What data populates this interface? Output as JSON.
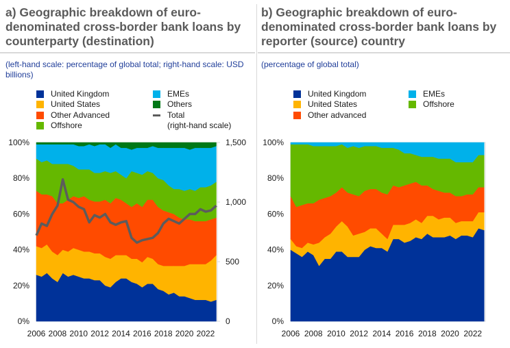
{
  "colors": {
    "united_kingdom": "#003299",
    "united_states": "#ffb400",
    "other_advanced": "#ff4b00",
    "offshore": "#65b800",
    "emes": "#00b1ea",
    "others": "#007816",
    "total": "#5c5c5c",
    "title": "#5a5a5a",
    "subtitle": "#1f3d99"
  },
  "panel_a": {
    "title": "a) Geographic breakdown of euro-denominated cross-border bank loans by counterparty (destination)",
    "subtitle": "(left-hand scale: percentage of global total; right-hand scale: USD billions)",
    "legend": [
      {
        "key": "united_kingdom",
        "label": "United Kingdom"
      },
      {
        "key": "united_states",
        "label": "United States"
      },
      {
        "key": "other_advanced",
        "label": "Other Advanced"
      },
      {
        "key": "offshore",
        "label": "Offshore"
      },
      {
        "key": "emes",
        "label": "EMEs"
      },
      {
        "key": "others",
        "label": "Others"
      },
      {
        "key": "total",
        "label": "Total",
        "label2": "(right-hand scale)"
      }
    ]
  },
  "panel_b": {
    "title": "b) Geographic breakdown of euro-denominated cross-border bank loans by reporter (source) country",
    "subtitle": "(percentage of global total)",
    "legend": [
      {
        "key": "united_kingdom",
        "label": "United Kingdom"
      },
      {
        "key": "united_states",
        "label": "United States"
      },
      {
        "key": "other_advanced",
        "label": "Other advanced"
      },
      {
        "key": "emes",
        "label": "EMEs"
      },
      {
        "key": "offshore",
        "label": "Offshore"
      }
    ]
  },
  "chart_data": [
    {
      "type": "area",
      "stacked": true,
      "title": "a) Geographic breakdown of euro-denominated cross-border bank loans by counterparty (destination)",
      "xlabel": "",
      "ylabel": "percentage of global total",
      "y2label": "USD billions",
      "xlim": [
        2006,
        2023.1
      ],
      "ylim": [
        0,
        100
      ],
      "y2lim": [
        0,
        1500
      ],
      "x_ticks": [
        "2006",
        "2008",
        "2010",
        "2012",
        "2014",
        "2016",
        "2018",
        "2020",
        "2022"
      ],
      "y_ticks": [
        "0%",
        "20%",
        "40%",
        "60%",
        "80%",
        "100%"
      ],
      "y2_ticks": [
        "0",
        "500",
        "1,000",
        "1,500"
      ],
      "x": [
        2006.0,
        2006.5,
        2007.0,
        2007.5,
        2008.0,
        2008.5,
        2009.0,
        2009.5,
        2010.0,
        2010.5,
        2011.0,
        2011.5,
        2012.0,
        2012.5,
        2013.0,
        2013.5,
        2014.0,
        2014.5,
        2015.0,
        2015.5,
        2016.0,
        2016.5,
        2017.0,
        2017.5,
        2018.0,
        2018.5,
        2019.0,
        2019.5,
        2020.0,
        2020.5,
        2021.0,
        2021.5,
        2022.0,
        2022.5,
        2023.0
      ],
      "series": [
        {
          "name": "United Kingdom",
          "key": "united_kingdom",
          "values": [
            26,
            25,
            27,
            24,
            22,
            27,
            25,
            26,
            25,
            24,
            24,
            23,
            23,
            20,
            19,
            22,
            24,
            24,
            22,
            21,
            19,
            21,
            21,
            18,
            17,
            15,
            16,
            14,
            14,
            13,
            12,
            12,
            12,
            11,
            12
          ]
        },
        {
          "name": "United States",
          "key": "united_states",
          "values": [
            16,
            16,
            16,
            15,
            15,
            13,
            14,
            15,
            15,
            15,
            15,
            15,
            15,
            16,
            16,
            15,
            13,
            13,
            13,
            14,
            14,
            15,
            14,
            14,
            14,
            16,
            15,
            17,
            17,
            19,
            20,
            20,
            20,
            23,
            25
          ]
        },
        {
          "name": "Other Advanced",
          "key": "other_advanced",
          "values": [
            31,
            30,
            28,
            31,
            29,
            26,
            29,
            29,
            29,
            31,
            29,
            29,
            29,
            32,
            31,
            32,
            31,
            29,
            29,
            31,
            31,
            32,
            33,
            32,
            31,
            30,
            29,
            27,
            26,
            25,
            24,
            24,
            24,
            23,
            21
          ]
        },
        {
          "name": "Offshore",
          "key": "offshore",
          "values": [
            18,
            18,
            19,
            18,
            22,
            22,
            20,
            17,
            16,
            15,
            17,
            16,
            16,
            16,
            17,
            15,
            14,
            14,
            20,
            17,
            18,
            16,
            15,
            16,
            17,
            15,
            14,
            16,
            16,
            17,
            17,
            19,
            19,
            19,
            20
          ]
        },
        {
          "name": "EMEs",
          "key": "emes",
          "values": [
            8,
            10,
            9,
            11,
            11,
            11,
            11,
            12,
            13,
            13,
            14,
            15,
            16,
            15,
            14,
            15,
            15,
            17,
            12,
            14,
            15,
            13,
            15,
            17,
            18,
            21,
            23,
            23,
            24,
            22,
            24,
            22,
            22,
            21,
            20
          ]
        },
        {
          "name": "Others",
          "key": "others",
          "values": [
            1,
            1,
            1,
            1,
            1,
            1,
            1,
            1,
            2,
            2,
            1,
            2,
            1,
            1,
            3,
            1,
            3,
            3,
            4,
            3,
            3,
            3,
            2,
            3,
            3,
            3,
            3,
            3,
            3,
            4,
            3,
            3,
            3,
            3,
            2
          ]
        },
        {
          "name": "Total (right-hand scale)",
          "key": "total",
          "type": "line",
          "axis": "right",
          "values": [
            720,
            820,
            800,
            900,
            970,
            1190,
            1020,
            1000,
            960,
            940,
            830,
            890,
            870,
            900,
            830,
            810,
            830,
            840,
            700,
            660,
            680,
            690,
            700,
            740,
            820,
            860,
            840,
            820,
            860,
            900,
            900,
            940,
            920,
            930,
            970
          ]
        }
      ]
    },
    {
      "type": "area",
      "stacked": true,
      "title": "b) Geographic breakdown of euro-denominated cross-border bank loans by reporter (source) country",
      "xlabel": "",
      "ylabel": "percentage of global total",
      "xlim": [
        2006,
        2023.1
      ],
      "ylim": [
        0,
        100
      ],
      "x_ticks": [
        "2006",
        "2008",
        "2010",
        "2012",
        "2014",
        "2016",
        "2018",
        "2020",
        "2022"
      ],
      "y_ticks": [
        "0%",
        "20%",
        "40%",
        "60%",
        "80%",
        "100%"
      ],
      "x": [
        2006.0,
        2006.5,
        2007.0,
        2007.5,
        2008.0,
        2008.5,
        2009.0,
        2009.5,
        2010.0,
        2010.5,
        2011.0,
        2011.5,
        2012.0,
        2012.5,
        2013.0,
        2013.5,
        2014.0,
        2014.5,
        2015.0,
        2015.5,
        2016.0,
        2016.5,
        2017.0,
        2017.5,
        2018.0,
        2018.5,
        2019.0,
        2019.5,
        2020.0,
        2020.5,
        2021.0,
        2021.5,
        2022.0,
        2022.5,
        2023.0
      ],
      "series": [
        {
          "name": "United Kingdom",
          "key": "united_kingdom",
          "values": [
            40,
            38,
            36,
            39,
            37,
            31,
            35,
            35,
            39,
            39,
            36,
            36,
            36,
            40,
            42,
            41,
            41,
            39,
            46,
            46,
            44,
            45,
            47,
            46,
            49,
            47,
            47,
            47,
            48,
            46,
            48,
            48,
            47,
            52,
            51
          ]
        },
        {
          "name": "United States",
          "key": "united_states",
          "values": [
            6,
            4,
            5,
            5,
            6,
            13,
            12,
            14,
            14,
            17,
            17,
            12,
            13,
            10,
            10,
            11,
            8,
            7,
            8,
            8,
            10,
            10,
            10,
            9,
            10,
            12,
            10,
            11,
            10,
            9,
            8,
            8,
            9,
            9,
            10
          ]
        },
        {
          "name": "Other advanced",
          "key": "other_advanced",
          "values": [
            24,
            22,
            24,
            22,
            23,
            24,
            22,
            21,
            19,
            19,
            19,
            23,
            21,
            23,
            22,
            22,
            23,
            25,
            22,
            21,
            22,
            22,
            21,
            21,
            17,
            15,
            16,
            14,
            14,
            15,
            14,
            15,
            15,
            14,
            14
          ]
        },
        {
          "name": "Offshore",
          "key": "offshore",
          "values": [
            29,
            35,
            34,
            33,
            32,
            30,
            29,
            28,
            26,
            24,
            25,
            27,
            27,
            25,
            24,
            24,
            25,
            26,
            21,
            21,
            18,
            17,
            15,
            16,
            16,
            18,
            18,
            19,
            19,
            19,
            19,
            18,
            18,
            18,
            18
          ]
        },
        {
          "name": "EMEs",
          "key": "emes",
          "values": [
            1,
            1,
            1,
            1,
            2,
            2,
            2,
            2,
            2,
            1,
            3,
            2,
            3,
            2,
            2,
            2,
            3,
            3,
            3,
            4,
            6,
            6,
            7,
            8,
            8,
            8,
            9,
            9,
            9,
            11,
            11,
            11,
            11,
            7,
            7
          ]
        }
      ]
    }
  ]
}
